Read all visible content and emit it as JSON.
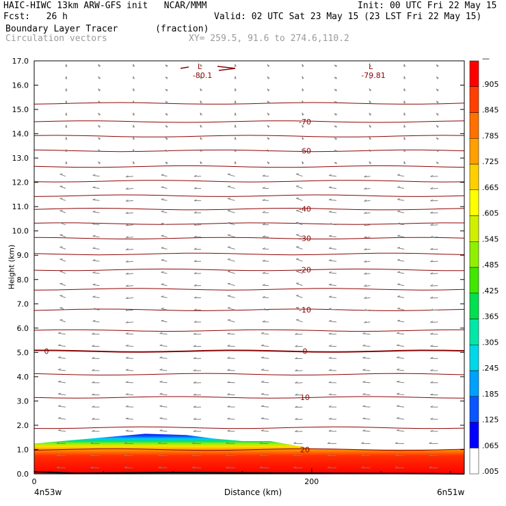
{
  "header": {
    "model": "HAIC-HIWC 13km ARW-GFS init   NCAR/MMM",
    "init": "Init: 00 UTC Fri 22 May 15",
    "fcst": "Fcst:   26 h",
    "valid": "Valid: 02 UTC Sat 23 May 15 (23 LST Fri 22 May 15)",
    "field1": "Boundary Layer Tracer       (fraction)",
    "field2": "Circulation vectors",
    "xy": "XY= 259.5, 91.6 to 274.6,110.2"
  },
  "colors": {
    "contour": "#8b0000",
    "vector": "#808080",
    "colorbar": [
      "#ffffff",
      "#0000ff",
      "#0a55ff",
      "#00a0ff",
      "#00d8e8",
      "#00e8a8",
      "#00e050",
      "#40e800",
      "#90f000",
      "#d0f000",
      "#ffff00",
      "#ffd000",
      "#ffa000",
      "#ff7000",
      "#ff4000",
      "#ff0000"
    ]
  },
  "chart_data": {
    "type": "heatmap",
    "xlabel": "Distance (km)",
    "ylabel": "Height (km)",
    "xlim": [
      0,
      310
    ],
    "ylim": [
      0,
      17
    ],
    "x_ticks": [
      "0",
      "200"
    ],
    "x_end_labels": [
      "4n53w",
      "6n51w"
    ],
    "y_ticks": [
      "0.0",
      "1.0",
      "2.0",
      "3.0",
      "4.0",
      "5.0",
      "6.0",
      "7.0",
      "8.0",
      "9.0",
      "10.0",
      "11.0",
      "12.0",
      "13.0",
      "14.0",
      "15.0",
      "16.0",
      "17.0"
    ],
    "colorbar_labels": [
      ".005",
      ".065",
      ".125",
      ".185",
      ".245",
      ".305",
      ".365",
      ".425",
      ".485",
      ".545",
      ".605",
      ".665",
      ".725",
      ".785",
      ".845",
      ".905",
      "—"
    ],
    "tracer_top_km": [
      {
        "x": 0,
        "y": 1.25
      },
      {
        "x": 40,
        "y": 1.45
      },
      {
        "x": 60,
        "y": 1.55
      },
      {
        "x": 80,
        "y": 1.65
      },
      {
        "x": 110,
        "y": 1.6
      },
      {
        "x": 130,
        "y": 1.45
      },
      {
        "x": 150,
        "y": 1.35
      },
      {
        "x": 170,
        "y": 1.35
      },
      {
        "x": 200,
        "y": 1.05
      },
      {
        "x": 250,
        "y": 1.0
      },
      {
        "x": 310,
        "y": 1.0
      }
    ],
    "temperature_contours": [
      {
        "label": "-80.1",
        "height_km": 16.6,
        "labeled": true
      },
      {
        "label": "-79.81",
        "height_km": 16.6,
        "labeled": true
      },
      {
        "label": "",
        "height_km": 15.25,
        "labeled": false
      },
      {
        "label": "-70",
        "height_km": 14.5,
        "labeled": true
      },
      {
        "label": "",
        "height_km": 13.9,
        "labeled": false
      },
      {
        "label": "-60",
        "height_km": 13.3,
        "labeled": true
      },
      {
        "label": "",
        "height_km": 12.65,
        "labeled": false
      },
      {
        "label": "",
        "height_km": 12.05,
        "labeled": false
      },
      {
        "label": "",
        "height_km": 11.45,
        "labeled": false
      },
      {
        "label": "-40",
        "height_km": 10.9,
        "labeled": true
      },
      {
        "label": "",
        "height_km": 10.3,
        "labeled": false
      },
      {
        "label": "-30",
        "height_km": 9.7,
        "labeled": true
      },
      {
        "label": "",
        "height_km": 9.05,
        "labeled": false
      },
      {
        "label": "-20",
        "height_km": 8.4,
        "labeled": true
      },
      {
        "label": "",
        "height_km": 7.6,
        "labeled": false
      },
      {
        "label": "-10",
        "height_km": 6.75,
        "labeled": true
      },
      {
        "label": "",
        "height_km": 5.9,
        "labeled": false
      },
      {
        "label": "0",
        "height_km": 5.05,
        "labeled": true
      },
      {
        "label": "",
        "height_km": 4.1,
        "labeled": false
      },
      {
        "label": "10",
        "height_km": 3.15,
        "labeled": true
      },
      {
        "label": "",
        "height_km": 1.9,
        "labeled": false
      },
      {
        "label": "20",
        "height_km": 1.0,
        "labeled": true
      }
    ],
    "vector_columns": 12,
    "vector_rows": 34
  }
}
